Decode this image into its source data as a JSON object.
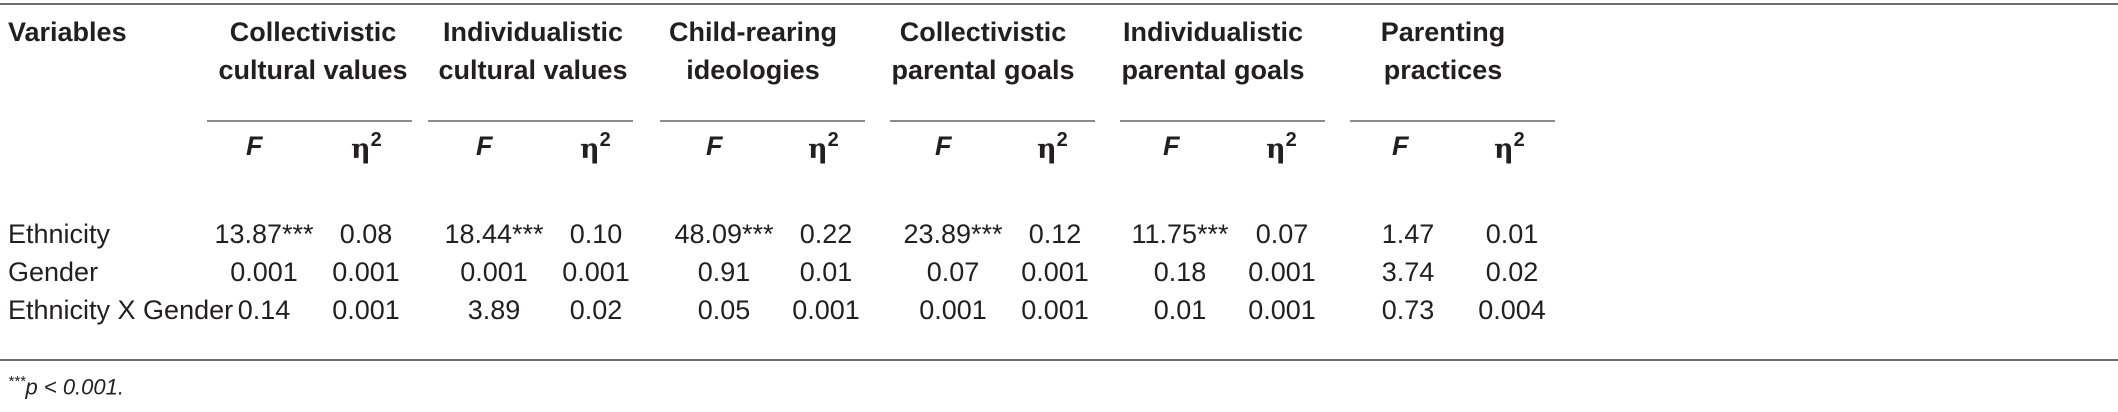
{
  "table": {
    "corner_label": "Variables",
    "groups": [
      {
        "line1": "Collectivistic",
        "line2": "cultural values"
      },
      {
        "line1": "Individualistic",
        "line2": "cultural values"
      },
      {
        "line1": "Child-rearing",
        "line2": "ideologies"
      },
      {
        "line1": "Collectivistic",
        "line2": "parental goals"
      },
      {
        "line1": "Individualistic",
        "line2": "parental goals"
      },
      {
        "line1": "Parenting",
        "line2": "practices"
      }
    ],
    "stat_f": "F",
    "stat_eta": "η",
    "stat_eta_sup": "2",
    "rows": [
      {
        "label": "Ethnicity",
        "values": [
          "13.87***",
          "0.08",
          "18.44***",
          "0.10",
          "48.09***",
          "0.22",
          "23.89***",
          "0.12",
          "11.75***",
          "0.07",
          "1.47",
          "0.01"
        ]
      },
      {
        "label": "Gender",
        "values": [
          "0.001",
          "0.001",
          "0.001",
          "0.001",
          "0.91",
          "0.01",
          "0.07",
          "0.001",
          "0.18",
          "0.001",
          "3.74",
          "0.02"
        ]
      },
      {
        "label": "Ethnicity X Gender",
        "values": [
          "0.14",
          "0.001",
          "3.89",
          "0.02",
          "0.05",
          "0.001",
          "0.001",
          "0.001",
          "0.01",
          "0.001",
          "0.73",
          "0.004"
        ]
      }
    ]
  },
  "footnote": {
    "stars": "***",
    "text": "p < 0.001."
  }
}
